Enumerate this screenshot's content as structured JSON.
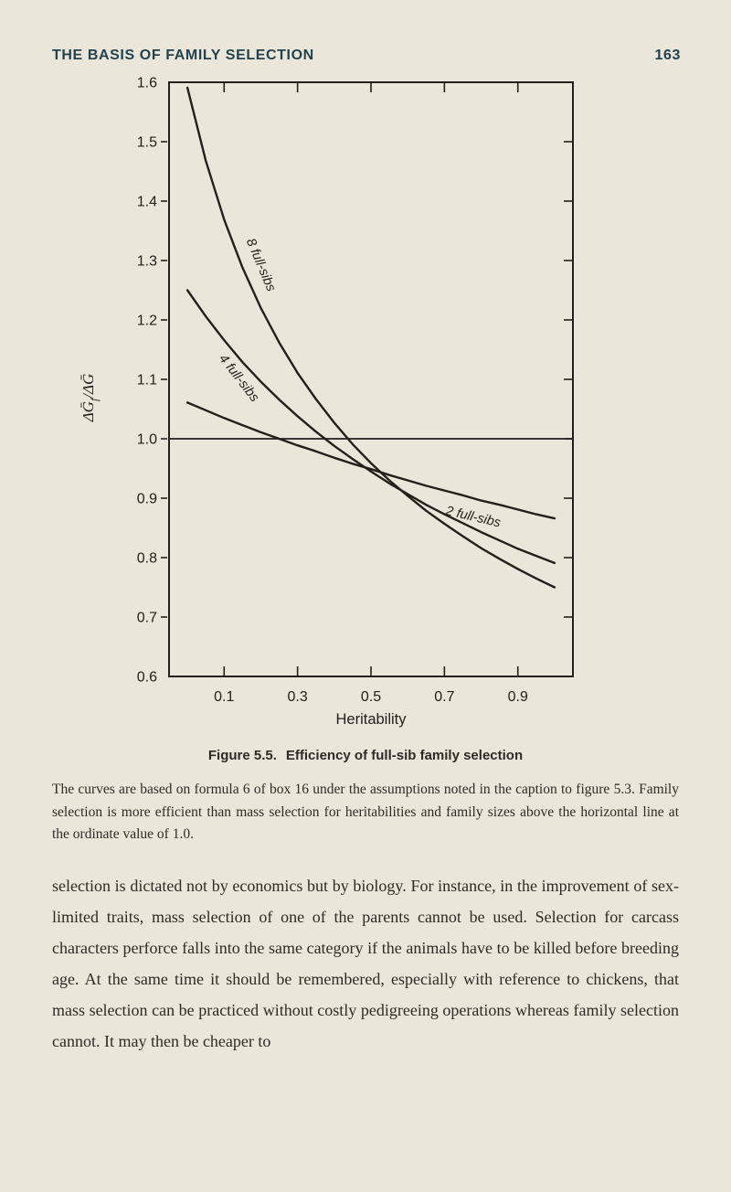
{
  "colors": {
    "paper": "#eae6d9",
    "ink": "#2e2b26",
    "chart_ink": "#23201c",
    "heading": "#24424e"
  },
  "header": {
    "title": "THE BASIS OF FAMILY SELECTION",
    "page_number": "163"
  },
  "figure": {
    "caption_label": "Figure 5.5.",
    "caption_text": "Efficiency of full-sib family selection",
    "note": "The curves are based on formula 6 of box 16 under the assumptions noted in the caption to figure 5.3. Family selection is more efficient than mass selection for heritabilities and family sizes above the horizontal line at the ordinate value of 1.0."
  },
  "body": {
    "paragraph": "selection is dictated not by economics but by biology. For instance, in the improvement of sex-limited traits, mass selection of one of the parents cannot be used. Selection for carcass characters perforce falls into the same category if the animals have to be killed before breeding age. At the same time it should be remembered, especially with reference to chickens, that mass selection can be practiced without costly pedigreeing operations whereas family selection cannot. It may then be cheaper to",
    "continues": true
  },
  "chart_data": {
    "type": "line",
    "title": "",
    "xlabel": "Heritability",
    "ylabel": "ΔḠf/ΔḠ",
    "ylabel_parts": [
      {
        "t": "ΔḠ"
      },
      {
        "t": "f",
        "sub": true
      },
      {
        "t": "/ΔḠ"
      }
    ],
    "xlim": [
      -0.05,
      1.05
    ],
    "ylim": [
      0.6,
      1.6
    ],
    "xticks": [
      0.1,
      0.3,
      0.5,
      0.7,
      0.9
    ],
    "yticks": [
      0.6,
      0.7,
      0.8,
      0.9,
      1.0,
      1.1,
      1.2,
      1.3,
      1.4,
      1.5,
      1.6
    ],
    "reference_line_y": 1.0,
    "grid": false,
    "legend": "labels-on-lines",
    "x": [
      0,
      0.05,
      0.1,
      0.15,
      0.2,
      0.25,
      0.3,
      0.35,
      0.4,
      0.45,
      0.5,
      0.55,
      0.6,
      0.65,
      0.7,
      0.75,
      0.8,
      0.85,
      0.9,
      0.95,
      1.0
    ],
    "series": [
      {
        "name": "8 full-sibs",
        "values": [
          1.591,
          1.468,
          1.369,
          1.288,
          1.22,
          1.162,
          1.111,
          1.067,
          1.027,
          0.991,
          0.959,
          0.93,
          0.904,
          0.879,
          0.857,
          0.836,
          0.816,
          0.798,
          0.781,
          0.765,
          0.75
        ],
        "label": {
          "text": "8 full-sibs",
          "x": 0.19,
          "y": 1.29,
          "rotate": 67
        }
      },
      {
        "name": "4 full-sibs",
        "values": [
          1.25,
          1.206,
          1.166,
          1.129,
          1.096,
          1.066,
          1.038,
          1.012,
          0.988,
          0.966,
          0.945,
          0.925,
          0.907,
          0.889,
          0.873,
          0.858,
          0.843,
          0.829,
          0.815,
          0.803,
          0.791
        ],
        "label": {
          "text": "4 full-sibs",
          "x": 0.132,
          "y": 1.098,
          "rotate": 52
        }
      },
      {
        "name": "2 full-sibs",
        "values": [
          1.061,
          1.048,
          1.035,
          1.023,
          1.011,
          1.0,
          0.989,
          0.979,
          0.968,
          0.958,
          0.949,
          0.939,
          0.93,
          0.921,
          0.913,
          0.905,
          0.896,
          0.889,
          0.881,
          0.873,
          0.866
        ],
        "label": {
          "text": "2 full-sibs",
          "x": 0.776,
          "y": 0.862,
          "rotate": 13
        }
      }
    ]
  }
}
